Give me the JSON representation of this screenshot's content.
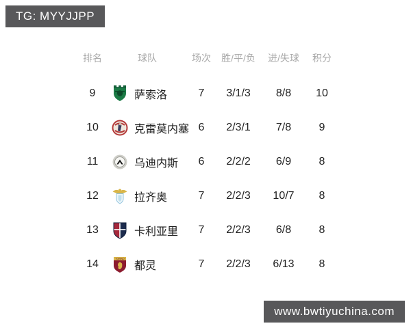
{
  "watermarks": {
    "top_left": "TG: MYYJJPP",
    "bottom_right": "www.bwtiyuchina.com"
  },
  "table": {
    "headers": [
      "排名",
      "球队",
      "场次",
      "胜/平/负",
      "进/失球",
      "积分"
    ],
    "rows": [
      {
        "rank": "9",
        "team": "萨索洛",
        "badge": "sassuolo-badge",
        "played": "7",
        "wdl": "3/1/3",
        "goals": "8/8",
        "points": "10"
      },
      {
        "rank": "10",
        "team": "克雷莫内塞",
        "badge": "cremonese-badge",
        "played": "6",
        "wdl": "2/3/1",
        "goals": "7/8",
        "points": "9"
      },
      {
        "rank": "11",
        "team": "乌迪内斯",
        "badge": "udinese-badge",
        "played": "6",
        "wdl": "2/2/2",
        "goals": "6/9",
        "points": "8"
      },
      {
        "rank": "12",
        "team": "拉齐奥",
        "badge": "lazio-badge",
        "played": "7",
        "wdl": "2/2/3",
        "goals": "10/7",
        "points": "8"
      },
      {
        "rank": "13",
        "team": "卡利亚里",
        "badge": "cagliari-badge",
        "played": "7",
        "wdl": "2/2/3",
        "goals": "6/8",
        "points": "8"
      },
      {
        "rank": "14",
        "team": "都灵",
        "badge": "torino-badge",
        "played": "7",
        "wdl": "2/2/3",
        "goals": "6/13",
        "points": "8"
      }
    ]
  },
  "icons": {
    "torino_text": "TORINO"
  },
  "colors": {
    "banner_background": "#58585a",
    "banner_text": "#ffffff",
    "header_text": "#a9a9a9",
    "body_text": "#212121",
    "page_background": "#ffffff",
    "sassuolo_green": "#1b7a45",
    "cremonese_red": "#b43a3a",
    "udinese_gray": "#cfcfc9",
    "lazio_blue": "#bfe0ee",
    "lazio_gold": "#d9b64a",
    "cagliari_red": "#a6293c",
    "cagliari_navy": "#1c2b4d",
    "torino_maroon": "#8c1b2f"
  }
}
